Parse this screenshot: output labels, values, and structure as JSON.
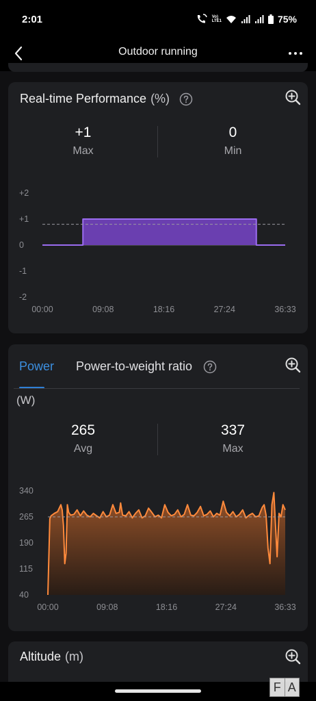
{
  "status_bar": {
    "time": "2:01",
    "volte_label": "VoLTE1",
    "volte_line1": "Vo)",
    "volte_line2": "LTE1",
    "battery": "75%"
  },
  "appbar": {
    "title": "Outdoor running",
    "back_icon": "arrow-back-icon",
    "more_icon": "more-horizontal-icon"
  },
  "performance": {
    "title": "Real-time Performance",
    "unit": "(%)",
    "max_value": "+1",
    "max_label": "Max",
    "min_value": "0",
    "min_label": "Min",
    "accent_color": "#6a3fb0",
    "line_color": "#9b6cf0"
  },
  "power": {
    "tabs": [
      {
        "label": "Power",
        "active": true
      },
      {
        "label": "Power-to-weight ratio",
        "active": false
      }
    ],
    "unit": "(W)",
    "avg_value": "265",
    "avg_label": "Avg",
    "max_value": "337",
    "max_label": "Max",
    "line_color": "#ff8a3c"
  },
  "altitude": {
    "title": "Altitude",
    "unit": "(m)"
  },
  "watermark": {
    "left": "F",
    "right": "A"
  },
  "chart_data": [
    {
      "type": "area",
      "title": "Real-time Performance (%)",
      "y_ticks": [
        "+2",
        "+1",
        "0",
        "-1",
        "-2"
      ],
      "x_ticks": [
        "00:00",
        "09:08",
        "18:16",
        "27:24",
        "36:33"
      ],
      "ylim": [
        -2,
        2
      ],
      "xlim_minutes": [
        0,
        36.55
      ],
      "reference_line": 0.8,
      "x_minutes": [
        0,
        6.1,
        6.1,
        32.2,
        32.2,
        36.55
      ],
      "values": [
        0,
        0,
        1,
        1,
        0,
        0
      ]
    },
    {
      "type": "area",
      "title": "Power (W)",
      "y_ticks": [
        "340",
        "265",
        "190",
        "115",
        "40"
      ],
      "x_ticks": [
        "00:00",
        "09:08",
        "18:16",
        "27:24",
        "36:33"
      ],
      "ylim": [
        40,
        340
      ],
      "xlim_minutes": [
        0,
        36.55
      ],
      "reference_line": 265,
      "x_minutes": [
        0,
        0.3,
        0.5,
        1.0,
        1.5,
        2.0,
        2.2,
        2.4,
        2.6,
        2.8,
        3.0,
        3.2,
        3.5,
        4.0,
        4.5,
        5.0,
        5.5,
        6.0,
        6.5,
        7.0,
        7.5,
        8.0,
        8.5,
        9.0,
        9.5,
        10.0,
        10.5,
        11.0,
        11.2,
        11.5,
        12.0,
        12.5,
        13.0,
        13.5,
        14.0,
        14.5,
        15.0,
        15.5,
        16.0,
        16.5,
        17.0,
        17.5,
        18.0,
        18.5,
        19.0,
        19.5,
        20.0,
        20.5,
        21.0,
        21.5,
        22.0,
        22.5,
        23.0,
        23.5,
        24.0,
        24.5,
        25.0,
        25.5,
        26.0,
        26.5,
        27.0,
        27.5,
        28.0,
        28.5,
        29.0,
        29.5,
        30.0,
        30.5,
        31.0,
        31.5,
        32.0,
        32.5,
        33.0,
        33.3,
        33.6,
        33.9,
        34.2,
        34.5,
        34.8,
        35.0,
        35.3,
        35.6,
        35.9,
        36.2,
        36.55
      ],
      "values": [
        40,
        260,
        268,
        275,
        280,
        300,
        285,
        240,
        130,
        160,
        300,
        278,
        270,
        272,
        285,
        268,
        282,
        270,
        265,
        275,
        268,
        262,
        280,
        265,
        270,
        300,
        275,
        278,
        305,
        270,
        268,
        280,
        262,
        275,
        285,
        262,
        268,
        290,
        278,
        265,
        270,
        262,
        300,
        278,
        268,
        272,
        285,
        265,
        272,
        300,
        270,
        268,
        278,
        295,
        268,
        272,
        282,
        265,
        275,
        270,
        310,
        278,
        268,
        280,
        265,
        272,
        285,
        262,
        270,
        275,
        265,
        268,
        292,
        300,
        270,
        175,
        130,
        300,
        335,
        260,
        150,
        275,
        265,
        300,
        285
      ]
    }
  ]
}
